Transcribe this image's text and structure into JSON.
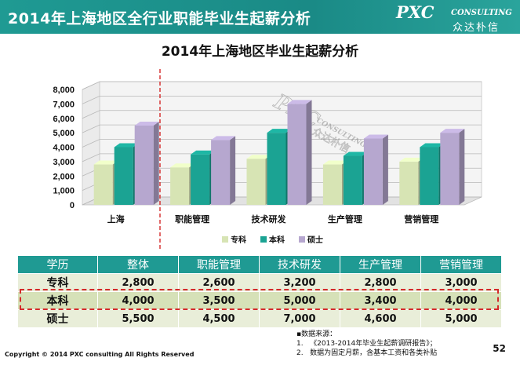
{
  "header": {
    "title": "2014年上海地区全行业职能毕业生起薪分析"
  },
  "logo": {
    "main": "PXC",
    "sub": "CONSULTING",
    "cn": "众达朴信"
  },
  "chart_data": {
    "type": "bar",
    "title": "2014年上海地区毕业生起薪分析",
    "categories": [
      "上海",
      "职能管理",
      "技术研发",
      "生产管理",
      "营销管理"
    ],
    "series": [
      {
        "name": "专科",
        "values": [
          2800,
          2600,
          3200,
          2800,
          3000
        ],
        "color": "#d7e4b4"
      },
      {
        "name": "本科",
        "values": [
          4000,
          3500,
          5000,
          3400,
          4000
        ],
        "color": "#1ba393"
      },
      {
        "name": "硕士",
        "values": [
          5500,
          4500,
          7000,
          4600,
          5000
        ],
        "color": "#b6a7cf"
      }
    ],
    "yticks": [
      "0",
      "1,000",
      "2,000",
      "3,000",
      "4,000",
      "5,000",
      "6,000",
      "7,000",
      "8,000"
    ],
    "ylim": [
      0,
      8000
    ],
    "grid": true,
    "legend": "bottom",
    "watermark": {
      "main": "PXC",
      "sub": "CONSULTING",
      "cn": "众达朴信"
    }
  },
  "table": {
    "headers": [
      "学历",
      "整体",
      "职能管理",
      "技术研发",
      "生产管理",
      "营销管理"
    ],
    "rows": [
      [
        "专科",
        "2,800",
        "2,600",
        "3,200",
        "2,800",
        "3,000"
      ],
      [
        "本科",
        "4,000",
        "3,500",
        "5,000",
        "3,400",
        "4,000"
      ],
      [
        "硕士",
        "5,500",
        "4,500",
        "7,000",
        "4,600",
        "5,000"
      ]
    ]
  },
  "source": {
    "title": "▪数据来源：",
    "items": [
      "1.   《2013-2014年毕业生起薪调研报告》；",
      "2.   数据为固定月薪，含基本工资和各类补贴"
    ]
  },
  "footer": {
    "copyright": "Copyright © 2014 PXC consulting All Rights Reserved",
    "page": "52"
  }
}
